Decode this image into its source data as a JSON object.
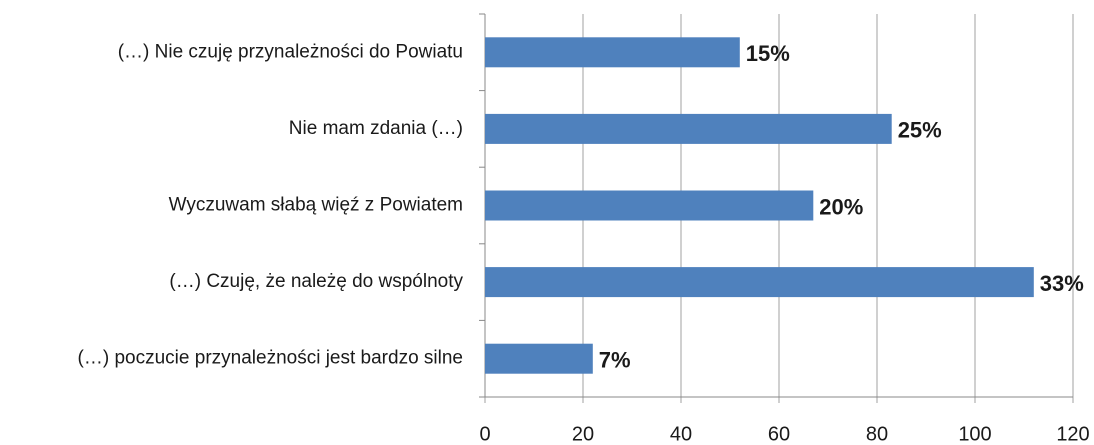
{
  "chart_data": {
    "type": "bar",
    "orientation": "horizontal",
    "categories": [
      "(…) Nie czuję przynależności do Powiatu",
      "Nie mam zdania (…)",
      "Wyczuwam słabą więź z Powiatem",
      "(…) Czuję, że należę do wspólnoty",
      "(…) poczucie przynależności jest bardzo silne"
    ],
    "values": [
      52,
      83,
      67,
      112,
      22
    ],
    "data_labels": [
      "15%",
      "25%",
      "20%",
      "33%",
      "7%"
    ],
    "color": "#4f81bd",
    "xlim": [
      0,
      120
    ],
    "xticks": [
      0,
      20,
      40,
      60,
      80,
      100,
      120
    ],
    "grid": true
  }
}
